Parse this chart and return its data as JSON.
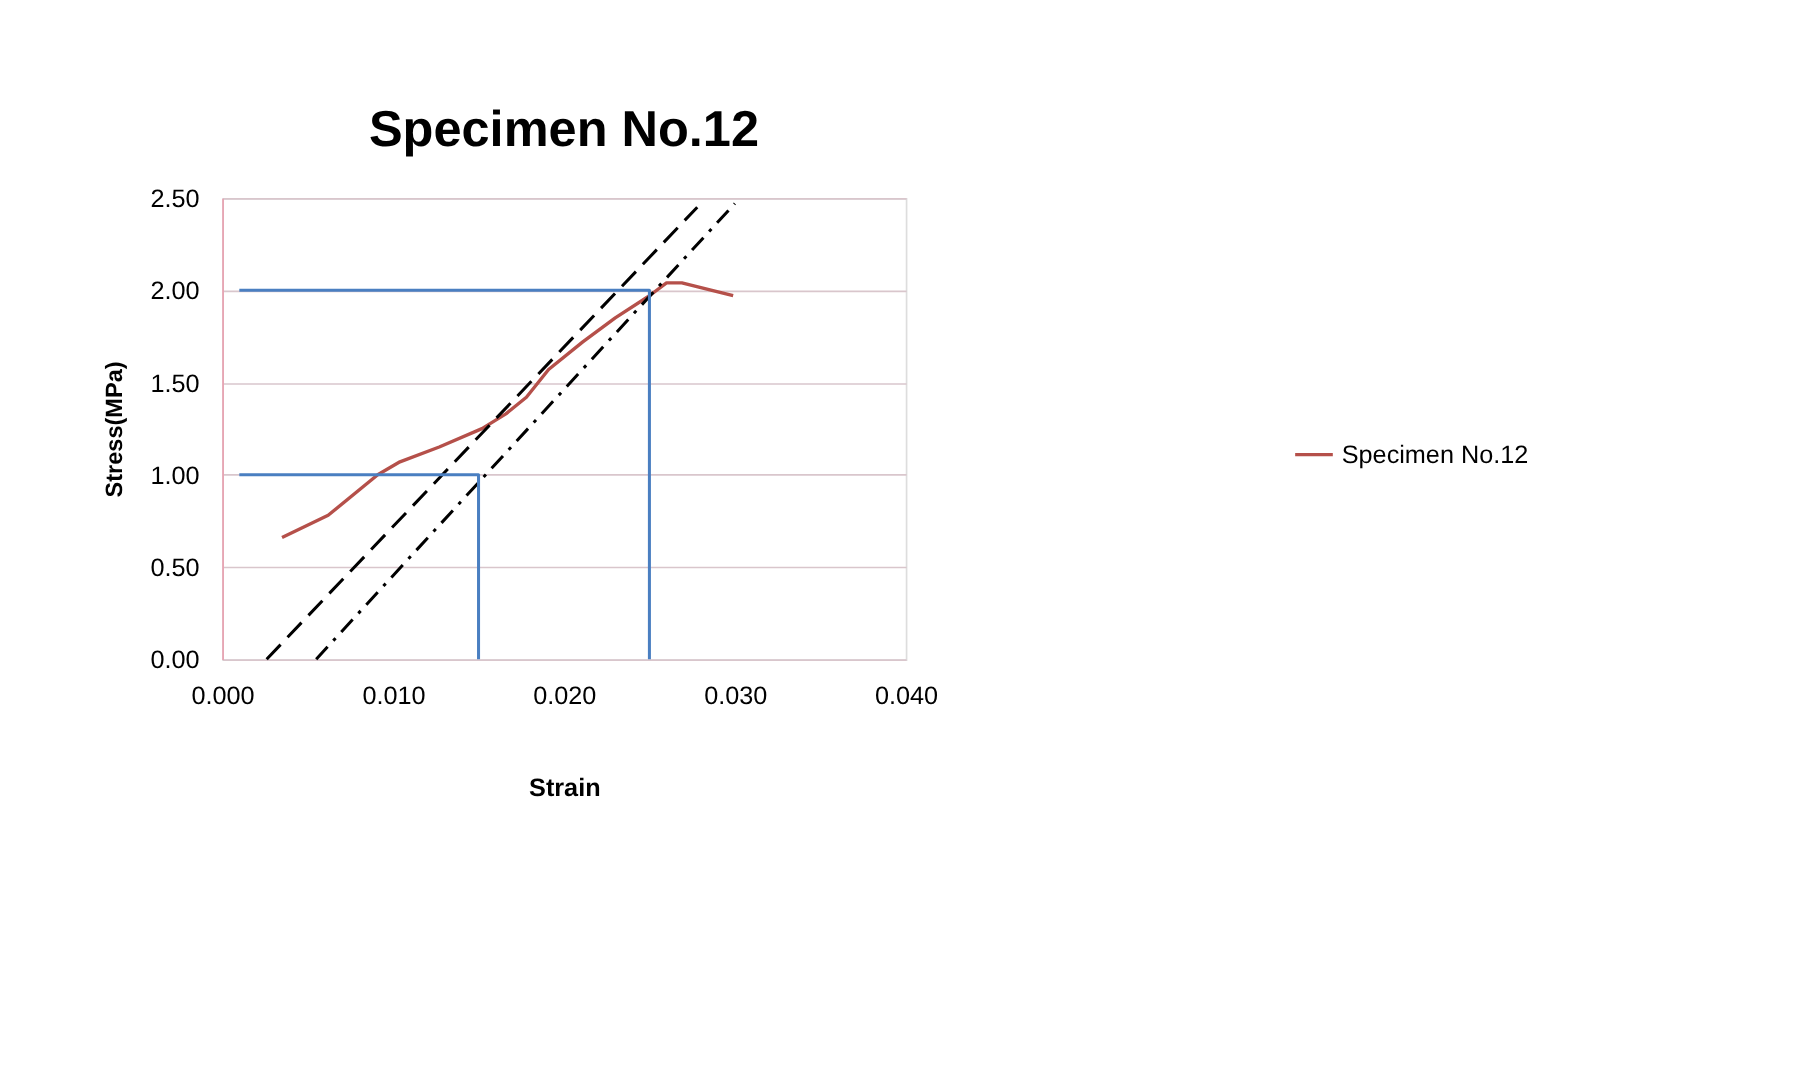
{
  "chart_data": {
    "type": "line",
    "title": "Specimen No.12",
    "xlabel": "Strain",
    "ylabel": "Stress(MPa)",
    "xlim": [
      0,
      0.04
    ],
    "xticks": [
      {
        "value": 0,
        "label": "0.000"
      },
      {
        "value": 0.01,
        "label": "0.010"
      },
      {
        "value": 0.02,
        "label": "0.020"
      },
      {
        "value": 0.03,
        "label": "0.030"
      },
      {
        "value": 0.04,
        "label": "0.040"
      }
    ],
    "ylim": [
      0,
      2.5
    ],
    "yticks": [
      {
        "value": 0,
        "label": "0.00"
      },
      {
        "value": 0.5,
        "label": "0.50"
      },
      {
        "value": 1,
        "label": "1.00"
      },
      {
        "value": 1.5,
        "label": "1.50"
      },
      {
        "value": 2,
        "label": "2.00"
      },
      {
        "value": 2.5,
        "label": "2.50"
      }
    ],
    "grid": "y",
    "legend": "right",
    "marker": "none",
    "series": [
      {
        "name": "Specimen No.12",
        "color": "#b5504a",
        "line_style": "solid",
        "x": [
          0.0035,
          0.0062,
          0.0091,
          0.0104,
          0.0127,
          0.0152,
          0.0166,
          0.0178,
          0.0191,
          0.0211,
          0.023,
          0.025,
          0.026,
          0.0269,
          0.0286,
          0.0299
        ],
        "values": [
          0.66,
          0.78,
          1.0,
          1.07,
          1.15,
          1.25,
          1.33,
          1.42,
          1.57,
          1.72,
          1.85,
          1.97,
          2.04,
          2.04,
          2.0,
          1.97
        ]
      },
      {
        "color": "#000000",
        "line_style": "dashed",
        "x": [
          0.0026,
          0.0278
        ],
        "values": [
          0,
          2.45
        ]
      },
      {
        "color": "#000000",
        "line_style": "dotted",
        "x": [
          0.0055,
          0.03
        ],
        "values": [
          0,
          2.47
        ]
      },
      {
        "color": "#4a7fc1",
        "line_style": "solid",
        "x": [
          0.001,
          0.015,
          0.015
        ],
        "values": [
          1,
          1,
          0
        ]
      },
      {
        "color": "#4a7fc1",
        "line_style": "solid",
        "x": [
          0.001,
          0.025,
          0.025
        ],
        "values": [
          2,
          2,
          0
        ]
      }
    ]
  }
}
